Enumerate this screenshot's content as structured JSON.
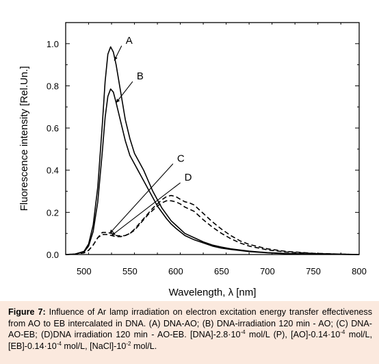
{
  "chart_data": {
    "type": "line",
    "xlabel": "Wavelength, λ [nm]",
    "ylabel": "Fluorescence intensity [Rel.Un.]",
    "xlim": [
      480,
      800
    ],
    "ylim": [
      0,
      1.1
    ],
    "xticks": [
      "500",
      "550",
      "600",
      "650",
      "700",
      "750",
      "800"
    ],
    "yticks": [
      "0.0",
      "0.2",
      "0.4",
      "0.6",
      "0.8",
      "1.0"
    ],
    "grid": false,
    "legend": "none",
    "series": [
      {
        "name": "A",
        "style": "solid",
        "x": [
          480,
          490,
          500,
          505,
          510,
          515,
          520,
          523,
          526,
          529,
          532,
          535,
          540,
          545,
          550,
          555,
          560,
          565,
          570,
          575,
          580,
          585,
          590,
          595,
          600,
          610,
          620,
          630,
          640,
          650,
          660,
          680,
          700,
          720,
          750,
          780,
          800
        ],
        "y": [
          0.0,
          0.002,
          0.015,
          0.05,
          0.14,
          0.32,
          0.62,
          0.82,
          0.95,
          0.985,
          0.96,
          0.9,
          0.77,
          0.64,
          0.55,
          0.48,
          0.44,
          0.4,
          0.35,
          0.3,
          0.26,
          0.22,
          0.19,
          0.16,
          0.14,
          0.1,
          0.08,
          0.06,
          0.045,
          0.035,
          0.027,
          0.016,
          0.009,
          0.005,
          0.002,
          0.001,
          0.0
        ]
      },
      {
        "name": "B",
        "style": "solid",
        "x": [
          480,
          490,
          500,
          505,
          510,
          515,
          520,
          523,
          526,
          529,
          532,
          535,
          540,
          545,
          550,
          555,
          560,
          565,
          570,
          575,
          580,
          585,
          590,
          595,
          600,
          610,
          620,
          630,
          640,
          650,
          660,
          680,
          700,
          720,
          750,
          780,
          800
        ],
        "y": [
          0.0,
          0.002,
          0.012,
          0.04,
          0.11,
          0.25,
          0.49,
          0.65,
          0.75,
          0.785,
          0.77,
          0.72,
          0.63,
          0.54,
          0.47,
          0.43,
          0.39,
          0.35,
          0.31,
          0.27,
          0.23,
          0.2,
          0.17,
          0.145,
          0.125,
          0.09,
          0.07,
          0.055,
          0.04,
          0.03,
          0.024,
          0.014,
          0.008,
          0.004,
          0.002,
          0.001,
          0.0
        ]
      },
      {
        "name": "C",
        "style": "dashed",
        "x": [
          480,
          490,
          500,
          505,
          510,
          515,
          520,
          525,
          530,
          535,
          540,
          545,
          550,
          555,
          560,
          565,
          570,
          575,
          580,
          585,
          590,
          595,
          600,
          605,
          610,
          615,
          620,
          625,
          630,
          640,
          650,
          660,
          670,
          680,
          700,
          720,
          750,
          780,
          800
        ],
        "y": [
          0.0,
          0.002,
          0.008,
          0.02,
          0.045,
          0.08,
          0.105,
          0.105,
          0.1,
          0.09,
          0.088,
          0.09,
          0.1,
          0.115,
          0.14,
          0.165,
          0.19,
          0.21,
          0.23,
          0.245,
          0.255,
          0.255,
          0.25,
          0.24,
          0.225,
          0.215,
          0.205,
          0.185,
          0.165,
          0.13,
          0.1,
          0.075,
          0.055,
          0.04,
          0.022,
          0.012,
          0.005,
          0.002,
          0.0
        ]
      },
      {
        "name": "D",
        "style": "dashed",
        "x": [
          480,
          490,
          500,
          505,
          510,
          515,
          520,
          525,
          530,
          535,
          540,
          545,
          550,
          555,
          560,
          565,
          570,
          575,
          580,
          585,
          590,
          595,
          600,
          605,
          610,
          615,
          620,
          625,
          630,
          640,
          650,
          660,
          670,
          680,
          700,
          720,
          750,
          780,
          800
        ],
        "y": [
          0.0,
          0.002,
          0.008,
          0.02,
          0.045,
          0.08,
          0.095,
          0.095,
          0.09,
          0.085,
          0.085,
          0.09,
          0.1,
          0.12,
          0.145,
          0.17,
          0.195,
          0.22,
          0.24,
          0.26,
          0.275,
          0.28,
          0.275,
          0.262,
          0.25,
          0.245,
          0.235,
          0.215,
          0.195,
          0.155,
          0.12,
          0.09,
          0.065,
          0.048,
          0.027,
          0.015,
          0.006,
          0.002,
          0.0
        ]
      }
    ],
    "annotations": [
      {
        "text": "A",
        "x": 544,
        "y": 1.0,
        "arrow_to": [
          533,
          0.92
        ]
      },
      {
        "text": "B",
        "x": 556,
        "y": 0.83,
        "arrow_to": [
          535,
          0.72
        ]
      },
      {
        "text": "C",
        "x": 600,
        "y": 0.44,
        "arrow_to": [
          528,
          0.1
        ]
      },
      {
        "text": "D",
        "x": 608,
        "y": 0.35,
        "arrow_to": [
          530,
          0.09
        ]
      }
    ]
  },
  "caption": {
    "lead": "Figure 7:",
    "text": "Influence of Ar lamp irradiation on electron excitation energy transfer effectiveness from AO to EB intercalated in DNA. (A) DNA-AO; (B) DNA-irradiation 120 min - AO; (C) DNA-AO-EB; (D)DNA irradiation 120 min - AO-EB. [DNA]-2.8·10",
    "sup1": "-4",
    "text2": " mol/L (P), [AO]-0.14·10",
    "sup2": "-4",
    "text3": " mol/L, [EB]-0.14·10",
    "sup3": "-4",
    "text4": " mol/L, [NaCl]-10",
    "sup4": "-2",
    "text5": " mol/L."
  }
}
